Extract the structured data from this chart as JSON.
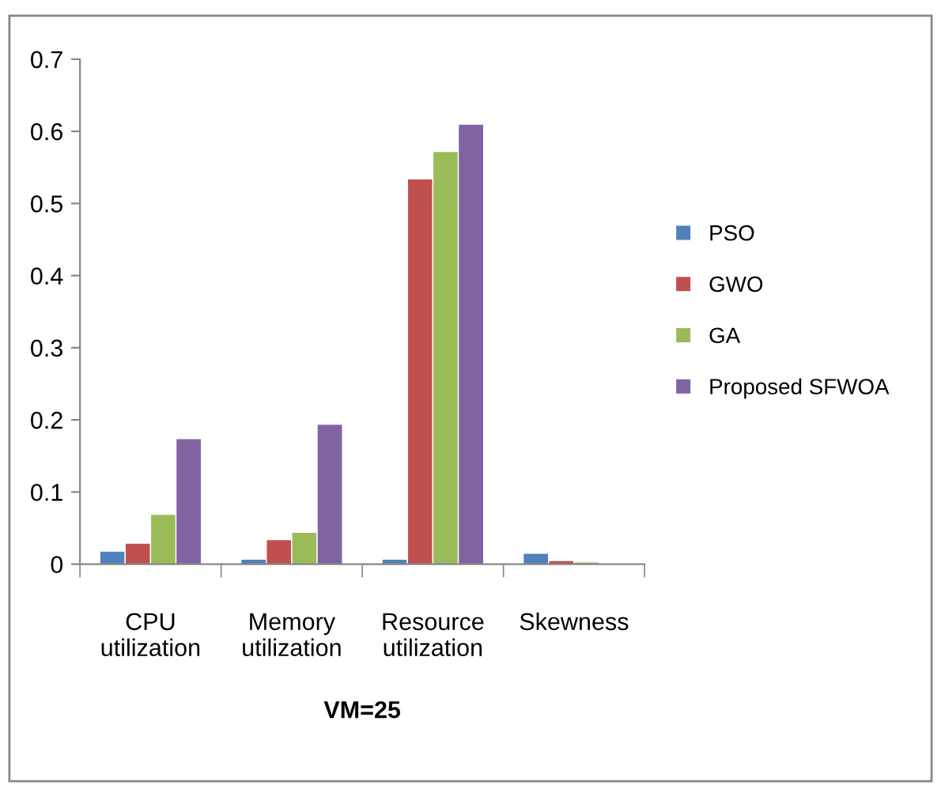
{
  "chart_data": {
    "type": "bar",
    "xlabel": "VM=25",
    "categories": [
      "CPU\nutilization",
      "Memory\nutilization",
      "Resource\nutilization",
      "Skewness"
    ],
    "series": [
      {
        "name": "PSO",
        "color": "#4f81bd",
        "values": [
          0.018,
          0.007,
          0.007,
          0.015
        ]
      },
      {
        "name": "GWO",
        "color": "#c0504d",
        "values": [
          0.029,
          0.034,
          0.534,
          0.005
        ]
      },
      {
        "name": "GA",
        "color": "#9bbb59",
        "values": [
          0.069,
          0.044,
          0.572,
          0.003
        ]
      },
      {
        "name": "Proposed SFWOA",
        "color": "#8064a2",
        "values": [
          0.174,
          0.194,
          0.61,
          null
        ]
      }
    ],
    "ylim": [
      0,
      0.7
    ],
    "yticks": [
      0,
      0.1,
      0.2,
      0.3,
      0.4,
      0.5,
      0.6,
      0.7
    ],
    "grid": false,
    "legend": "right"
  }
}
